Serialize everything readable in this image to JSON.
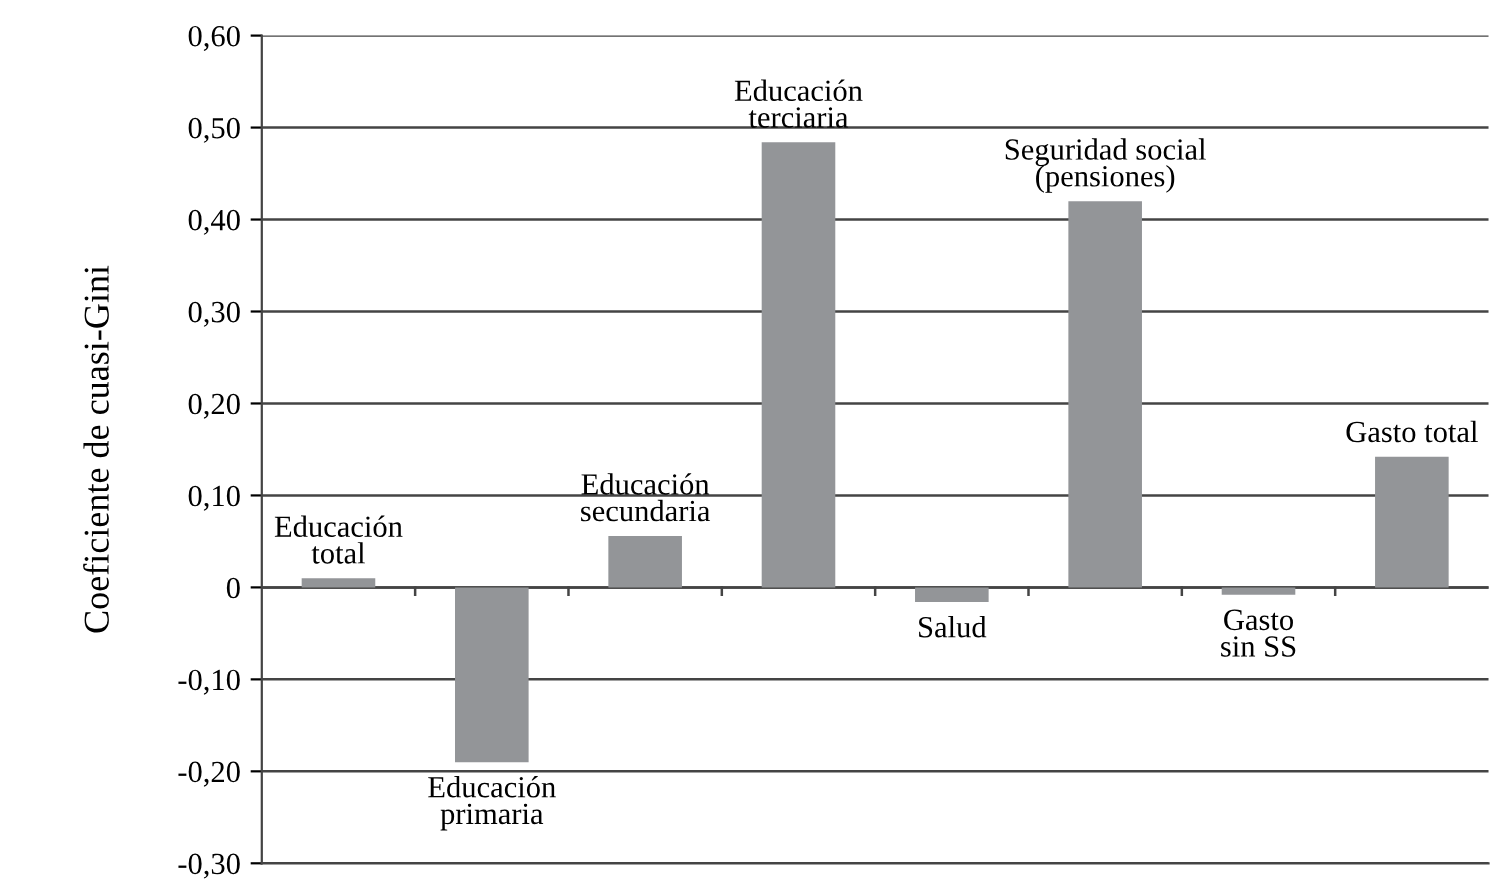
{
  "chart_data": {
    "type": "bar",
    "ylabel": "Coeficiente de cuasi-Gini",
    "categories": [
      "Educación\ntotal",
      "Educación\nprimaria",
      "Educación\nsecundaria",
      "Educación\nterciaria",
      "Salud",
      "Seguridad social\n(pensiones)",
      "Gasto\nsin SS",
      "Gasto total"
    ],
    "values": [
      0.01,
      -0.19,
      0.056,
      0.484,
      -0.016,
      0.42,
      -0.008,
      0.142
    ],
    "color": "#939598",
    "ylim": [
      -0.3,
      0.6
    ],
    "yticks": [
      {
        "value": -0.3,
        "label": "-0,30"
      },
      {
        "value": -0.2,
        "label": "-0,20"
      },
      {
        "value": -0.1,
        "label": "-0,10"
      },
      0,
      {
        "value": 0.1,
        "label": "0,10"
      },
      {
        "value": 0.2,
        "label": "0,20"
      },
      {
        "value": 0.3,
        "label": "0,30"
      },
      {
        "value": 0.4,
        "label": "0,40"
      },
      {
        "value": 0.5,
        "label": "0,50"
      },
      {
        "value": 0.6,
        "label": "0,60"
      }
    ],
    "grid": "y"
  }
}
